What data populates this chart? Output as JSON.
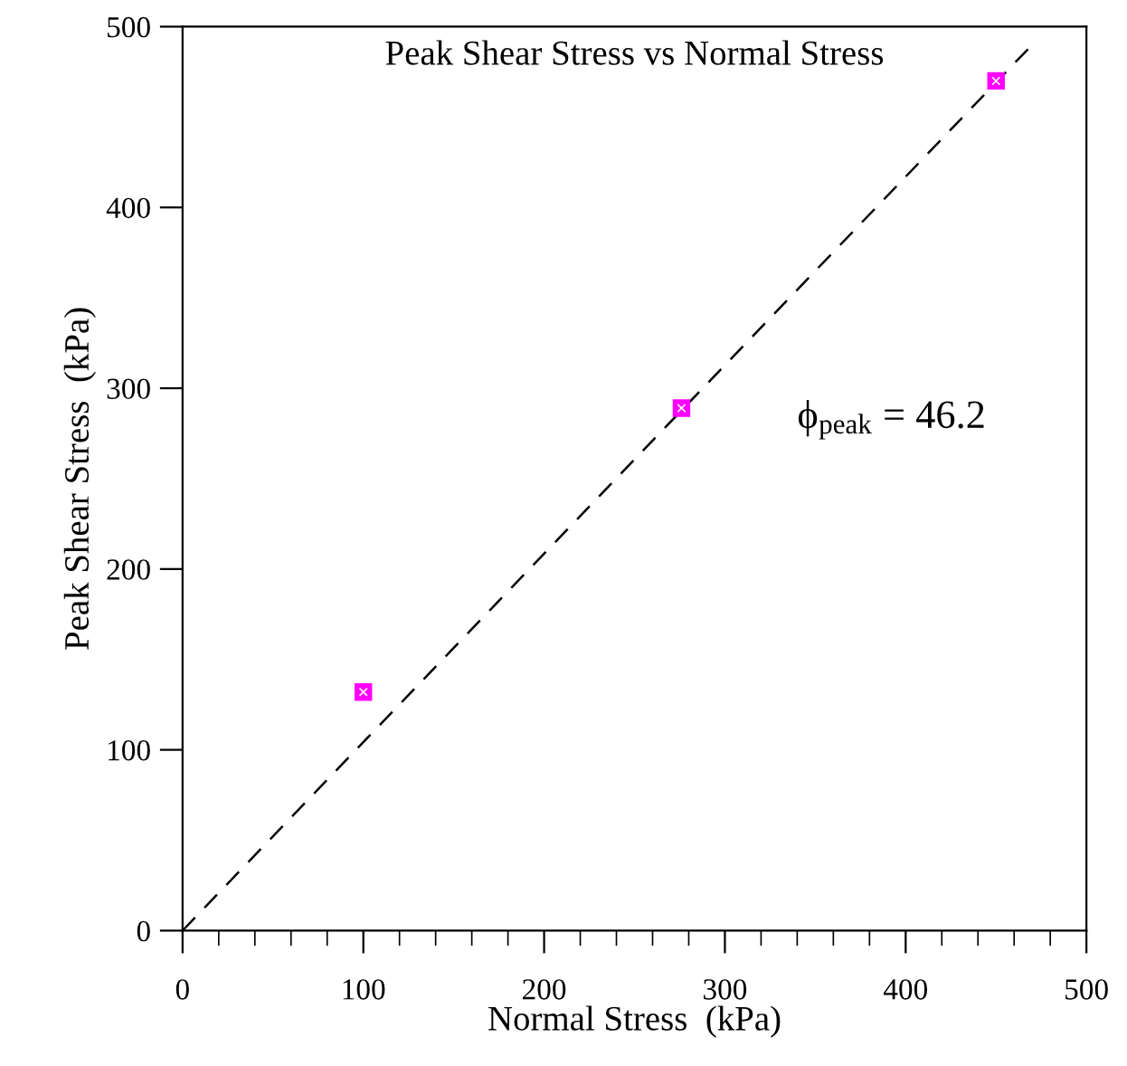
{
  "chart_data": {
    "type": "scatter",
    "title": "Peak Shear Stress vs Normal Stress",
    "xlabel": "Normal Stress  (kPa)",
    "ylabel": "Peak Shear Stress  (kPa)",
    "annotations": [
      "ϕ$_{peak}$ = 46.2"
    ],
    "x": [
      100,
      276,
      450
    ],
    "series": [
      {
        "color": "#ff00ff",
        "marker": "square",
        "values": [
          132,
          289,
          470
        ]
      },
      {
        "type": "line",
        "color": "#000000",
        "line_style": "dashed",
        "marker": "none",
        "x": [
          0,
          470
        ],
        "values": [
          0,
          490
        ]
      }
    ],
    "xlim": [
      0,
      500
    ],
    "ylim": [
      0,
      500
    ],
    "xticks": [
      0,
      100,
      200,
      300,
      400,
      500
    ],
    "yticks": [
      0,
      100,
      200,
      300,
      400,
      500
    ],
    "grid": false,
    "legend": false
  }
}
